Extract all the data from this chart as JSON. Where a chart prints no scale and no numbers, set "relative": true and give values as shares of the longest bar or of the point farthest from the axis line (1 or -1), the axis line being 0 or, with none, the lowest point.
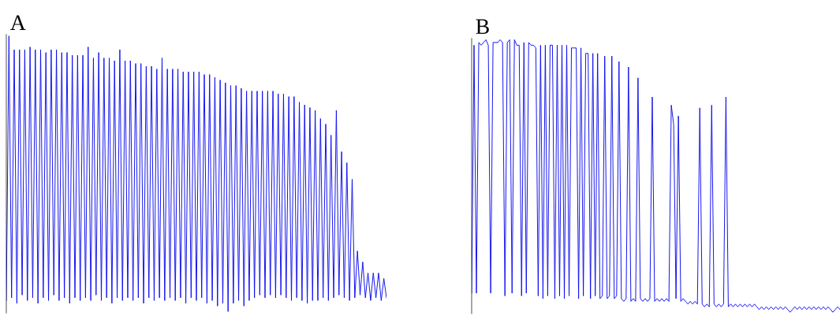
{
  "chart_data": [
    {
      "type": "line",
      "title": "A",
      "relative": true,
      "tick_labels": false,
      "legend": false,
      "marker": "none",
      "line_style": "solid",
      "categories": [
        null,
        null,
        null,
        null,
        null,
        null,
        null,
        null,
        null,
        null,
        null,
        null,
        null,
        null,
        null,
        null,
        null,
        null,
        null,
        null,
        null,
        null,
        null,
        null,
        null,
        null,
        null,
        null,
        null,
        null,
        null,
        null,
        null,
        null,
        null,
        null,
        null,
        null,
        null,
        null,
        null,
        null,
        null,
        null,
        null,
        null,
        null,
        null,
        null,
        null,
        null,
        null,
        null,
        null,
        null,
        null,
        null,
        null,
        null,
        null,
        null,
        null,
        null,
        null,
        null,
        null,
        null,
        null,
        null,
        null,
        null,
        null,
        null,
        null,
        null,
        null,
        null,
        null,
        null,
        null,
        null,
        null,
        null,
        null,
        null,
        null,
        null,
        null,
        null,
        null,
        null,
        null,
        null,
        null,
        null,
        null,
        null,
        null,
        null,
        null,
        null,
        null,
        null,
        null,
        null,
        null,
        null,
        null,
        null,
        null,
        null,
        null,
        null,
        null,
        null,
        null,
        null,
        null,
        null,
        null,
        null,
        null,
        null,
        null,
        null,
        null,
        null,
        null,
        null,
        null,
        null,
        null,
        null,
        null,
        null,
        null,
        null,
        null,
        null,
        null,
        null,
        null,
        null,
        null,
        null
      ],
      "series": [
        {
          "color": "#1010ee",
          "values": [
            0.04,
            1.0,
            0.05,
            0.95,
            0.03,
            0.95,
            0.06,
            0.95,
            0.04,
            0.96,
            0.05,
            0.95,
            0.03,
            0.95,
            0.05,
            0.94,
            0.04,
            0.95,
            0.06,
            0.95,
            0.04,
            0.94,
            0.05,
            0.94,
            0.03,
            0.93,
            0.05,
            0.93,
            0.04,
            0.93,
            0.05,
            0.96,
            0.04,
            0.92,
            0.06,
            0.94,
            0.04,
            0.92,
            0.05,
            0.92,
            0.03,
            0.91,
            0.05,
            0.95,
            0.04,
            0.91,
            0.05,
            0.91,
            0.04,
            0.9,
            0.05,
            0.9,
            0.03,
            0.89,
            0.05,
            0.89,
            0.04,
            0.88,
            0.05,
            0.92,
            0.04,
            0.88,
            0.05,
            0.88,
            0.04,
            0.88,
            0.05,
            0.87,
            0.03,
            0.87,
            0.05,
            0.87,
            0.04,
            0.87,
            0.05,
            0.86,
            0.03,
            0.86,
            0.04,
            0.85,
            0.02,
            0.84,
            0.03,
            0.83,
            0.0,
            0.82,
            0.03,
            0.82,
            0.04,
            0.81,
            0.02,
            0.8,
            0.04,
            0.8,
            0.05,
            0.8,
            0.06,
            0.8,
            0.05,
            0.8,
            0.06,
            0.8,
            0.05,
            0.79,
            0.06,
            0.79,
            0.05,
            0.78,
            0.04,
            0.78,
            0.05,
            0.76,
            0.04,
            0.75,
            0.03,
            0.74,
            0.04,
            0.73,
            0.04,
            0.7,
            0.05,
            0.68,
            0.04,
            0.64,
            0.05,
            0.73,
            0.06,
            0.58,
            0.05,
            0.54,
            0.04,
            0.48,
            0.05,
            0.22,
            0.06,
            0.18,
            0.05,
            0.14,
            0.04,
            0.14,
            0.05,
            0.14,
            0.04,
            0.12,
            0.05
          ]
        }
      ]
    },
    {
      "type": "line",
      "title": "B",
      "relative": true,
      "tick_labels": false,
      "legend": false,
      "marker": "none",
      "line_style": "solid",
      "categories": [
        null,
        null,
        null,
        null,
        null,
        null,
        null,
        null,
        null,
        null,
        null,
        null,
        null,
        null,
        null,
        null,
        null,
        null,
        null,
        null,
        null,
        null,
        null,
        null,
        null,
        null,
        null,
        null,
        null,
        null,
        null,
        null,
        null,
        null,
        null,
        null,
        null,
        null,
        null,
        null,
        null,
        null,
        null,
        null,
        null,
        null,
        null,
        null,
        null,
        null,
        null,
        null,
        null,
        null,
        null,
        null,
        null,
        null,
        null,
        null,
        null,
        null,
        null,
        null,
        null,
        null,
        null,
        null,
        null,
        null,
        null,
        null,
        null,
        null,
        null,
        null,
        null,
        null,
        null,
        null,
        null,
        null,
        null,
        null,
        null,
        null,
        null,
        null,
        null,
        null,
        null,
        null,
        null,
        null,
        null,
        null,
        null,
        null,
        null,
        null,
        null,
        null,
        null,
        null,
        null,
        null,
        null,
        null,
        null,
        null,
        null,
        null,
        null,
        null,
        null,
        null,
        null,
        null,
        null,
        null,
        null,
        null,
        null,
        null,
        null,
        null,
        null,
        null,
        null,
        null,
        null,
        null,
        null,
        null,
        null,
        null,
        null,
        null,
        null,
        null,
        null,
        null,
        null,
        null,
        null,
        null,
        null,
        null,
        null,
        null,
        null,
        null,
        null,
        null,
        null,
        null
      ],
      "series": [
        {
          "color": "#1010ee",
          "values": [
            0.07,
            0.98,
            0.07,
            0.99,
            0.98,
            0.99,
            1.0,
            0.98,
            0.07,
            0.99,
            0.99,
            0.99,
            1.0,
            0.99,
            0.06,
            0.99,
            1.0,
            0.07,
            1.0,
            0.98,
            0.98,
            0.06,
            0.99,
            0.07,
            0.99,
            0.98,
            0.98,
            0.97,
            0.06,
            0.98,
            0.05,
            0.98,
            0.06,
            0.98,
            0.98,
            0.05,
            0.98,
            0.06,
            0.98,
            0.05,
            0.98,
            0.06,
            0.97,
            0.97,
            0.97,
            0.05,
            0.97,
            0.06,
            0.95,
            0.95,
            0.05,
            0.95,
            0.06,
            0.95,
            0.05,
            0.06,
            0.94,
            0.05,
            0.06,
            0.94,
            0.05,
            0.06,
            0.92,
            0.05,
            0.04,
            0.05,
            0.9,
            0.04,
            0.05,
            0.04,
            0.86,
            0.05,
            0.04,
            0.05,
            0.04,
            0.05,
            0.79,
            0.04,
            0.05,
            0.04,
            0.05,
            0.04,
            0.05,
            0.04,
            0.76,
            0.69,
            0.05,
            0.72,
            0.04,
            0.05,
            0.04,
            0.03,
            0.04,
            0.03,
            0.04,
            0.03,
            0.75,
            0.03,
            0.02,
            0.03,
            0.02,
            0.76,
            0.03,
            0.02,
            0.03,
            0.02,
            0.03,
            0.79,
            0.02,
            0.03,
            0.02,
            0.03,
            0.02,
            0.03,
            0.02,
            0.03,
            0.02,
            0.03,
            0.02,
            0.03,
            0.02,
            0.01,
            0.02,
            0.01,
            0.02,
            0.01,
            0.02,
            0.01,
            0.02,
            0.01,
            0.02,
            0.01,
            0.02,
            0.01,
            0.0,
            0.01,
            0.02,
            0.01,
            0.02,
            0.01,
            0.02,
            0.01,
            0.02,
            0.01,
            0.02,
            0.01,
            0.02,
            0.01,
            0.02,
            0.01,
            0.02,
            0.01,
            0.0,
            0.01,
            0.02,
            0.01
          ]
        }
      ]
    }
  ]
}
